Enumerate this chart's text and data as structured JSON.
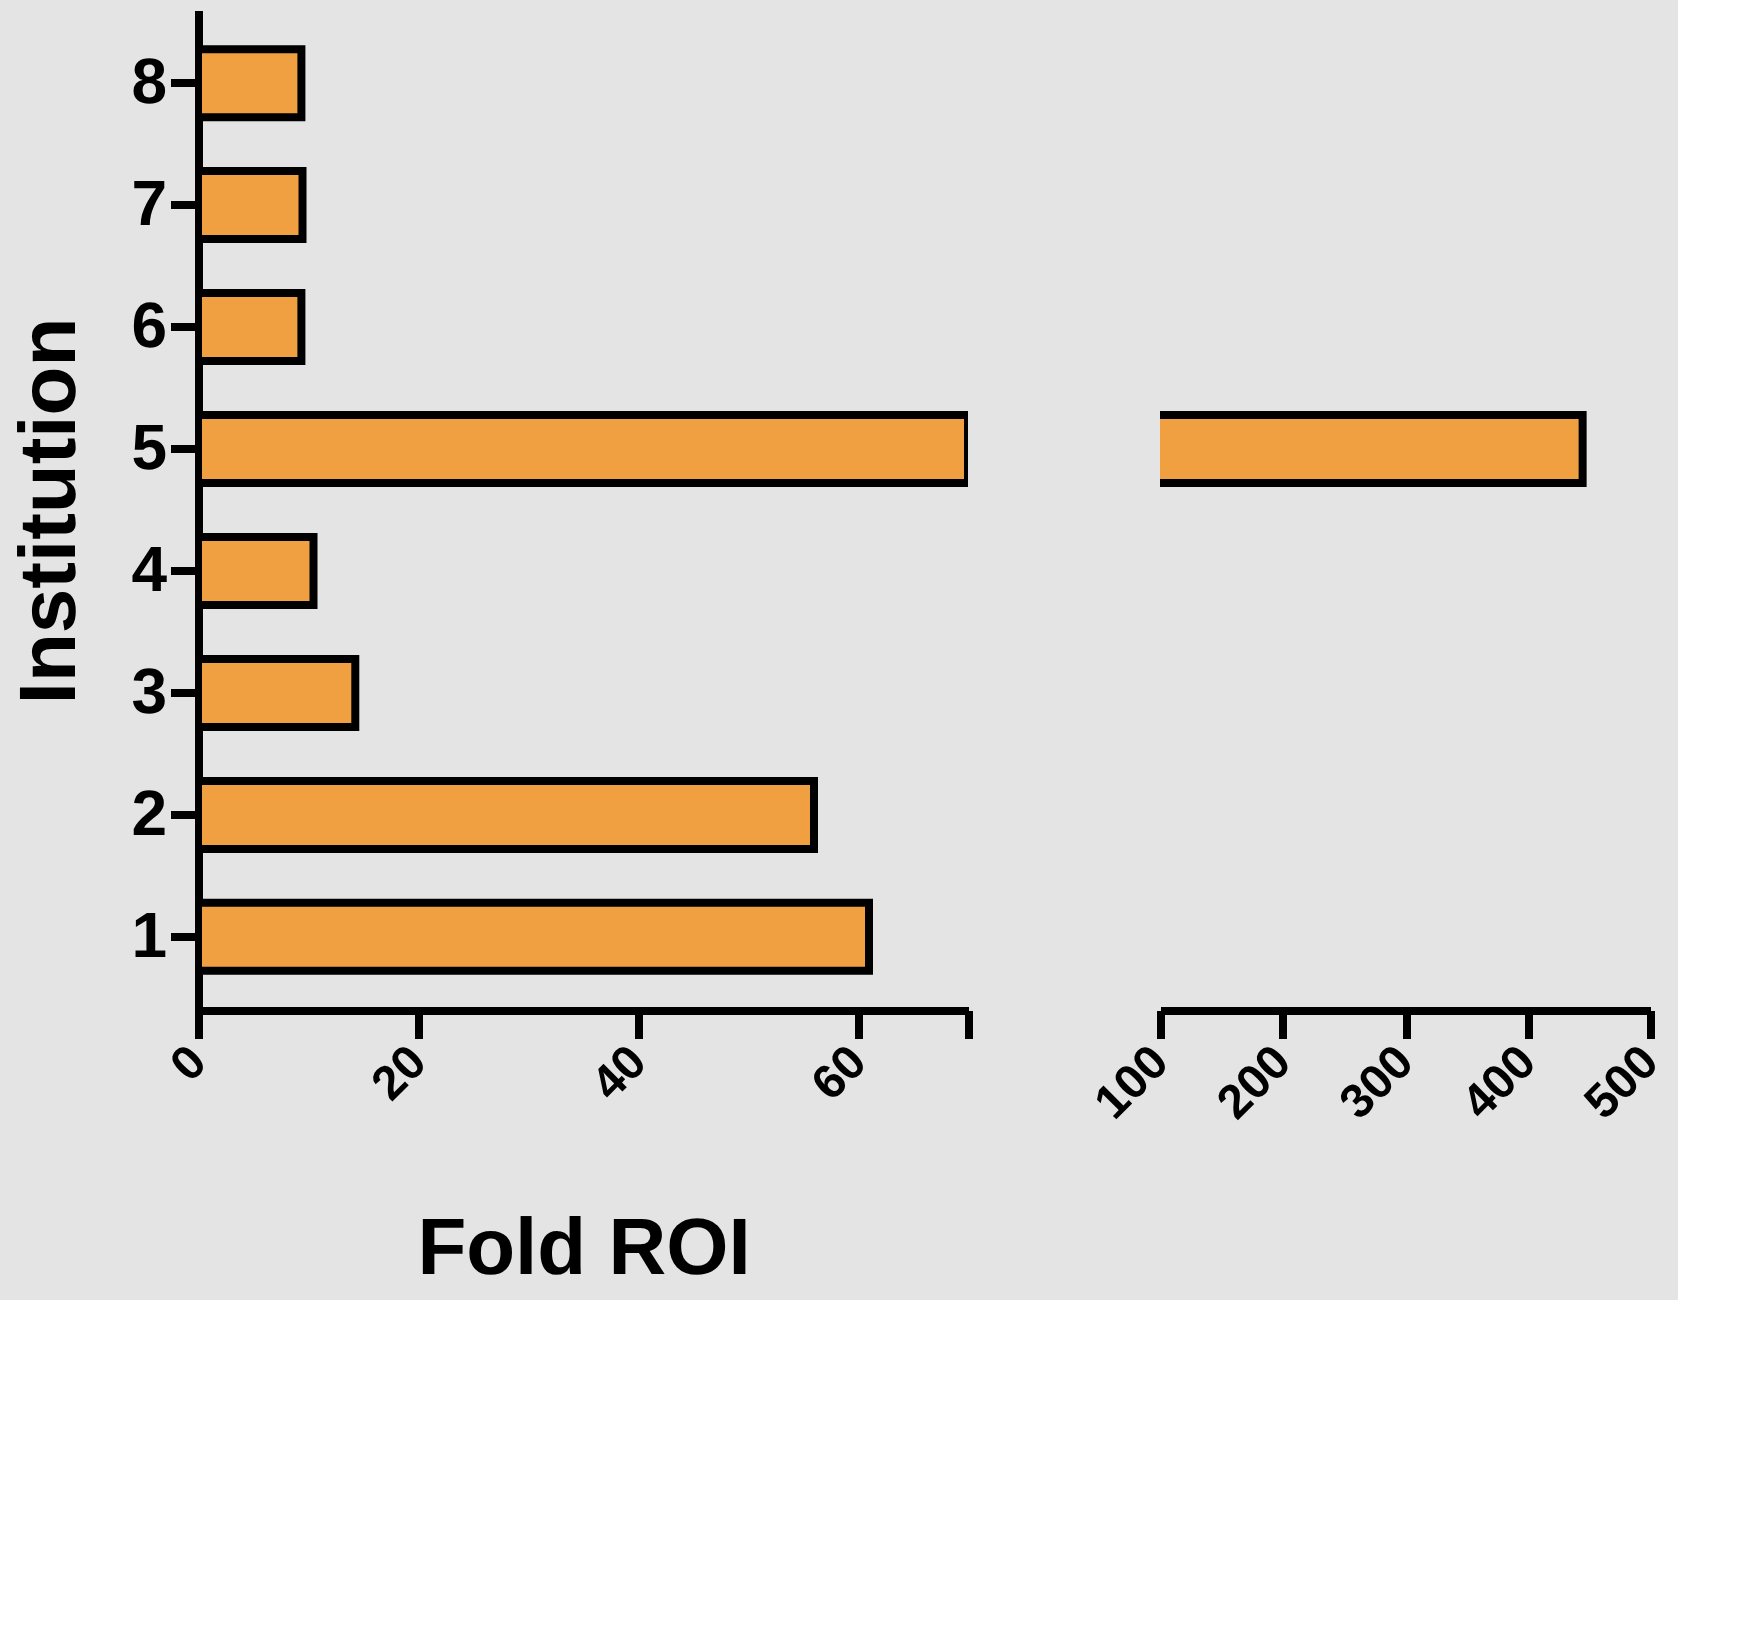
{
  "chart_data": [
    {
      "type": "bar",
      "orientation": "horizontal",
      "ylabel": "Institution",
      "xlabel": "Fold ROI",
      "categories": [
        "8",
        "7",
        "6",
        "5",
        "4",
        "3",
        "2",
        "1"
      ],
      "series": [
        {
          "color": "#f0a040",
          "values": [
            9.4,
            9.5,
            9.4,
            70,
            10.5,
            14.3,
            56,
            61
          ]
        }
      ],
      "xlim": [
        0,
        70
      ],
      "xticks": [
        0,
        20,
        40,
        60,
        {
          "value": 70,
          "label": null
        }
      ],
      "grid": false
    },
    {
      "type": "bar",
      "orientation": "horizontal",
      "categories": [
        "8",
        "7",
        "6",
        "5",
        "4",
        "3",
        "2",
        "1"
      ],
      "series": [
        {
          "color": "#f0a040",
          "values": [
            null,
            null,
            null,
            445,
            null,
            null,
            null,
            null
          ]
        }
      ],
      "xlim": [
        100,
        500
      ],
      "xticks": [
        100,
        200,
        300,
        400,
        500
      ],
      "tick_labels": "x",
      "grid": false
    }
  ]
}
